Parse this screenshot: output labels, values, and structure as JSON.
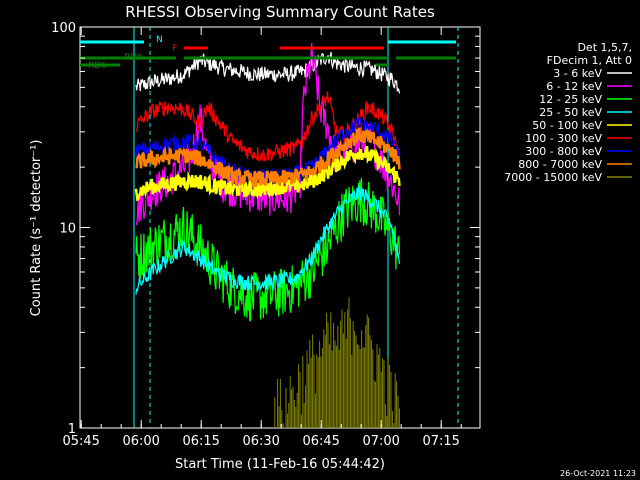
{
  "chart_data": {
    "type": "line",
    "title": "RHESSI Observing Summary Count Rates",
    "xlabel": "Start Time (11-Feb-16 05:44:42)",
    "ylabel": "Count Rate (s⁻¹ detector⁻¹)",
    "yscale": "log",
    "ylim": [
      1,
      100
    ],
    "xlim_minutes": [
      0,
      40
    ],
    "x_tick_labels": [
      "05:45",
      "06:00",
      "06:15",
      "06:30",
      "06:45",
      "07:00",
      "07:15"
    ],
    "x_tick_minutes": [
      0.3,
      15.3,
      30.3,
      45.3,
      60.3,
      75.3,
      90.3
    ],
    "xlim": [
      0,
      100
    ],
    "y_tick_labels": [
      "1",
      "10",
      "100"
    ],
    "y_tick_values": [
      1,
      10,
      100
    ],
    "legend_header": [
      "Det 1,5,7,",
      "FDecim 1, Att 0"
    ],
    "legend_position": "right",
    "footer_date": "26-Oct-2021 11:23",
    "flags": [
      {
        "label": "N",
        "color": "#00ffff"
      },
      {
        "label": "F",
        "color": "#ff0000"
      },
      {
        "label": "RD0",
        "color": "#008000"
      },
      {
        "label": "RD6",
        "color": "#008000"
      }
    ],
    "data_window_minutes": [
      13.5,
      80.5
    ],
    "series": [
      {
        "name": "3 - 6 keV",
        "color": "#ffffff",
        "x": [
          14,
          18,
          22,
          26,
          30,
          33,
          36,
          40,
          44,
          48,
          52,
          56,
          60,
          62,
          64,
          68,
          72,
          74,
          78,
          80
        ],
        "y": [
          50,
          53,
          55,
          58,
          68,
          65,
          62,
          60,
          58,
          58,
          58,
          60,
          68,
          72,
          66,
          63,
          62,
          60,
          55,
          50
        ]
      },
      {
        "name": "6 - 12 keV",
        "color": "#ff00ff",
        "x": [
          14,
          18,
          22,
          26,
          28,
          30,
          32,
          36,
          40,
          46,
          52,
          55,
          56,
          58,
          60,
          64,
          68,
          72,
          76,
          80
        ],
        "y": [
          12,
          15,
          17,
          20,
          23,
          35,
          22,
          16,
          15,
          14,
          14,
          16,
          45,
          70,
          40,
          22,
          25,
          28,
          20,
          13
        ]
      },
      {
        "name": "12 - 25 keV",
        "color": "#00ff00",
        "x": [
          14,
          18,
          22,
          26,
          30,
          34,
          38,
          42,
          46,
          50,
          54,
          58,
          62,
          66,
          70,
          74,
          78,
          80
        ],
        "y": [
          7,
          8,
          9,
          10,
          8,
          6,
          5,
          4.5,
          4.5,
          4.7,
          5,
          6,
          8,
          12,
          14,
          12,
          9,
          7
        ]
      },
      {
        "name": "25 - 50 keV",
        "color": "#00ffff",
        "x": [
          14,
          18,
          22,
          26,
          30,
          34,
          38,
          42,
          46,
          50,
          54,
          58,
          62,
          66,
          70,
          74,
          78,
          80
        ],
        "y": [
          5,
          6,
          7,
          8,
          7,
          6,
          5.5,
          5.3,
          5.3,
          5.4,
          5.6,
          7,
          10,
          13,
          15,
          13,
          10,
          6
        ]
      },
      {
        "name": "50 - 100 keV",
        "color": "#ffff00",
        "x": [
          14,
          18,
          22,
          26,
          30,
          34,
          38,
          42,
          46,
          50,
          54,
          58,
          62,
          66,
          70,
          74,
          78,
          80
        ],
        "y": [
          15,
          16,
          16.5,
          17,
          17,
          16,
          15.5,
          15.5,
          15.5,
          16,
          16,
          17,
          19,
          22,
          24,
          22,
          19,
          17
        ]
      },
      {
        "name": "100 - 300 keV",
        "color": "#ff0000",
        "x": [
          14,
          18,
          22,
          26,
          30,
          32,
          34,
          38,
          42,
          46,
          50,
          54,
          56,
          58,
          60,
          62,
          64,
          66,
          68,
          70,
          72,
          74,
          76,
          78,
          80
        ],
        "y": [
          32,
          38,
          40,
          39,
          33,
          40,
          35,
          27,
          24,
          23,
          24,
          25,
          28,
          35,
          40,
          45,
          30,
          29,
          32,
          35,
          40,
          38,
          35,
          30,
          22
        ]
      },
      {
        "name": "300 - 800 keV",
        "color": "#0000ff",
        "x": [
          14,
          18,
          22,
          26,
          30,
          34,
          38,
          42,
          46,
          50,
          54,
          58,
          62,
          66,
          70,
          74,
          78,
          80
        ],
        "y": [
          24,
          25,
          26,
          27,
          26,
          22,
          19,
          18,
          18,
          18,
          18.5,
          20,
          24,
          30,
          33,
          31,
          27,
          22
        ]
      },
      {
        "name": "800 - 7000 keV",
        "color": "#ff8000",
        "x": [
          14,
          18,
          22,
          26,
          30,
          34,
          38,
          42,
          46,
          50,
          54,
          58,
          62,
          66,
          70,
          74,
          78,
          80
        ],
        "y": [
          21,
          22,
          22.5,
          23,
          22,
          20,
          18,
          17.5,
          17.5,
          17.5,
          18,
          19,
          22,
          26,
          29,
          27,
          24,
          21
        ]
      },
      {
        "name": "7000 - 15000 keV",
        "color": "#808000",
        "x": [
          48,
          52,
          56,
          60,
          62,
          64,
          66,
          68,
          70,
          72,
          74,
          76,
          78,
          80
        ],
        "y": [
          1.3,
          1.5,
          2,
          2.6,
          3,
          2.8,
          3.2,
          3.8,
          3.4,
          2.9,
          2.5,
          2.0,
          1.6,
          1.3
        ]
      }
    ]
  }
}
